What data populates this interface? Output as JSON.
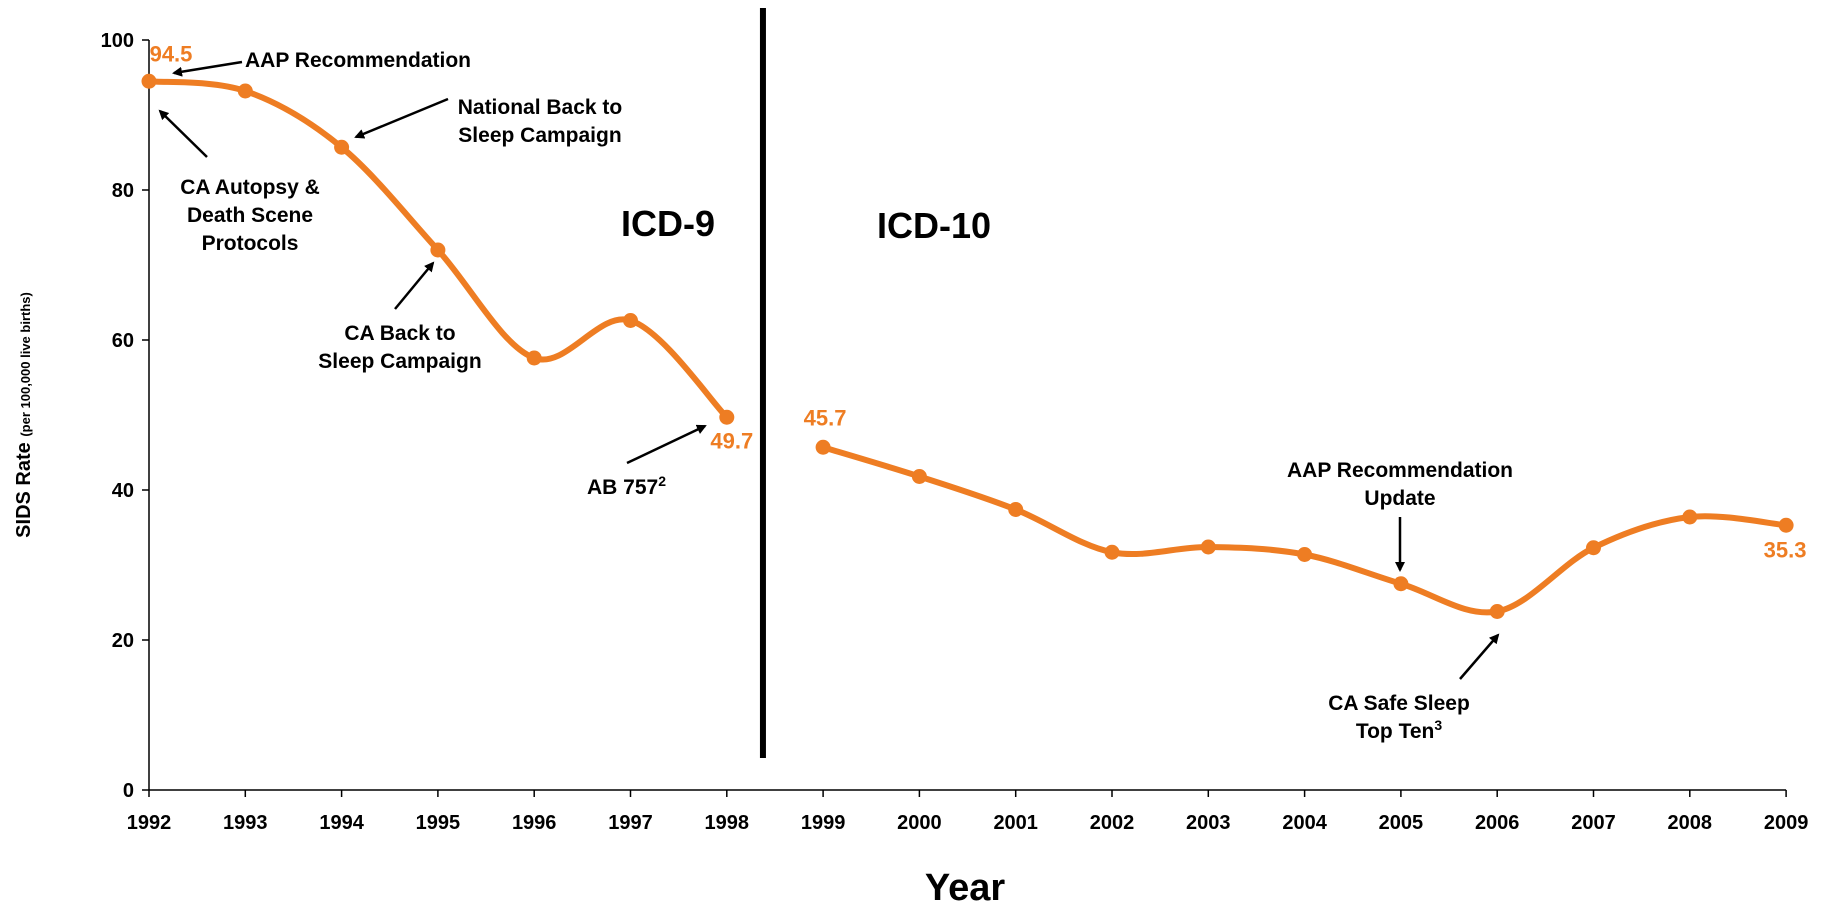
{
  "chart_data": {
    "type": "line",
    "title": "",
    "xlabel": "Year",
    "ylabel": "SIDS Rate",
    "ylabel_sub": "(per 100,000 live births)",
    "ylim": [
      0,
      100
    ],
    "yticks": [
      "0",
      "20",
      "40",
      "60",
      "80",
      "100"
    ],
    "grid": false,
    "colors": {
      "line": "#EE7D23",
      "divider": "#000000",
      "text": "#000000"
    },
    "categories": [
      "1992",
      "1993",
      "1994",
      "1995",
      "1996",
      "1997",
      "1998",
      "1999",
      "2000",
      "2001",
      "2002",
      "2003",
      "2004",
      "2005",
      "2006",
      "2007",
      "2008",
      "2009"
    ],
    "series": [
      {
        "segment": "ICD-9",
        "x": [
          "1992",
          "1993",
          "1994",
          "1995",
          "1996",
          "1997",
          "1998"
        ],
        "values": [
          94.5,
          93.2,
          85.7,
          72.0,
          57.6,
          62.6,
          49.7
        ]
      },
      {
        "segment": "ICD-10",
        "x": [
          "1999",
          "2000",
          "2001",
          "2002",
          "2003",
          "2004",
          "2005",
          "2006",
          "2007",
          "2008",
          "2009"
        ],
        "values": [
          45.7,
          41.8,
          37.4,
          31.7,
          32.4,
          31.4,
          27.5,
          23.8,
          32.3,
          36.4,
          35.3
        ]
      }
    ],
    "data_labels": [
      {
        "x": "1992",
        "text": "94.5"
      },
      {
        "x": "1998",
        "text": "49.7"
      },
      {
        "x": "1999",
        "text": "45.7"
      },
      {
        "x": "2009",
        "text": "35.3"
      }
    ],
    "eras": [
      {
        "text": "ICD-9"
      },
      {
        "text": "ICD-10"
      }
    ],
    "annotations": [
      {
        "lines": [
          "AAP Recommendation"
        ]
      },
      {
        "lines": [
          "National Back to",
          "Sleep Campaign"
        ]
      },
      {
        "lines": [
          "CA Autopsy &",
          "Death Scene",
          "Protocols"
        ]
      },
      {
        "lines": [
          "CA Back to",
          "Sleep Campaign"
        ]
      },
      {
        "lines": [
          "AB 757"
        ],
        "sup": "2"
      },
      {
        "lines": [
          "AAP Recommendation",
          "Update"
        ]
      },
      {
        "lines": [
          "CA Safe Sleep",
          "Top Ten"
        ],
        "sup": "3"
      }
    ]
  }
}
